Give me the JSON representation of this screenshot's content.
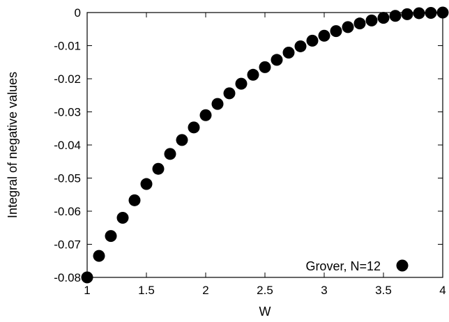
{
  "chart_data": {
    "type": "scatter",
    "title": "",
    "xlabel": "W",
    "ylabel": "Integral of negative values",
    "xlim": [
      1,
      4
    ],
    "ylim": [
      -0.08,
      0
    ],
    "x_ticks": [
      1,
      1.5,
      2,
      2.5,
      3,
      3.5,
      4
    ],
    "x_tick_labels": [
      "1",
      "1.5",
      "2",
      "2.5",
      "3",
      "3.5",
      "4"
    ],
    "y_ticks": [
      0,
      -0.01,
      -0.02,
      -0.03,
      -0.04,
      -0.05,
      -0.06,
      -0.07,
      -0.08
    ],
    "y_tick_labels": [
      "0",
      "-0.01",
      "-0.02",
      "-0.03",
      "-0.04",
      "-0.05",
      "-0.06",
      "-0.07",
      "-0.08"
    ],
    "grid": false,
    "legend": {
      "position": "bottom-right",
      "entries": [
        "Grover, N=12"
      ]
    },
    "series": [
      {
        "name": "Grover, N=12",
        "color": "#000000",
        "marker": "filled-circle",
        "x": [
          1.0,
          1.1,
          1.2,
          1.3,
          1.4,
          1.5,
          1.6,
          1.7,
          1.8,
          1.9,
          2.0,
          2.1,
          2.2,
          2.3,
          2.4,
          2.5,
          2.6,
          2.7,
          2.8,
          2.9,
          3.0,
          3.1,
          3.2,
          3.3,
          3.4,
          3.5,
          3.6,
          3.7,
          3.8,
          3.9,
          4.0
        ],
        "y": [
          -0.08,
          -0.0735,
          -0.0675,
          -0.062,
          -0.0567,
          -0.0518,
          -0.0472,
          -0.0427,
          -0.0385,
          -0.0347,
          -0.031,
          -0.0276,
          -0.0244,
          -0.0215,
          -0.0188,
          -0.0165,
          -0.0143,
          -0.0121,
          -0.0102,
          -0.0085,
          -0.007,
          -0.0056,
          -0.0044,
          -0.0033,
          -0.0024,
          -0.0016,
          -0.001,
          -0.0005,
          -0.0002,
          -0.0001,
          0.0
        ]
      }
    ]
  }
}
